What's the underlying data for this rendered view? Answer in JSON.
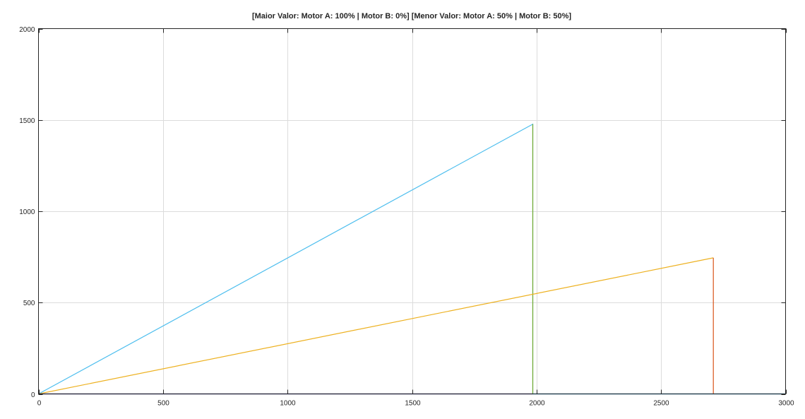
{
  "chart_data": {
    "type": "line",
    "title": "[Maior Valor: Motor A: 100% | Motor B: 0%] [Menor Valor: Motor A: 50% | Motor B: 50%]",
    "xlabel": "",
    "ylabel": "",
    "xlim": [
      0,
      3000
    ],
    "ylim": [
      0,
      2000
    ],
    "x_ticks": [
      0,
      500,
      1000,
      1500,
      2000,
      2500,
      3000
    ],
    "y_ticks": [
      0,
      500,
      1000,
      1500,
      2000
    ],
    "grid": true,
    "legend": "none",
    "series": [
      {
        "color": "#4dbeee",
        "x": [
          0,
          1985,
          1985,
          3000
        ],
        "y": [
          0,
          1477,
          0,
          0
        ]
      },
      {
        "color": "#77ac30",
        "x": [
          1985,
          1985
        ],
        "y": [
          0,
          1477
        ]
      },
      {
        "color": "#edb120",
        "x": [
          0,
          2710
        ],
        "y": [
          0,
          745
        ]
      },
      {
        "color": "#d95319",
        "x": [
          2710,
          2710
        ],
        "y": [
          0,
          745
        ]
      },
      {
        "color": "#0072bd",
        "x": [
          0,
          3000
        ],
        "y": [
          0,
          0
        ]
      },
      {
        "color": "#7e2f8e",
        "x": [
          0,
          1985
        ],
        "y": [
          0,
          0
        ]
      }
    ]
  }
}
